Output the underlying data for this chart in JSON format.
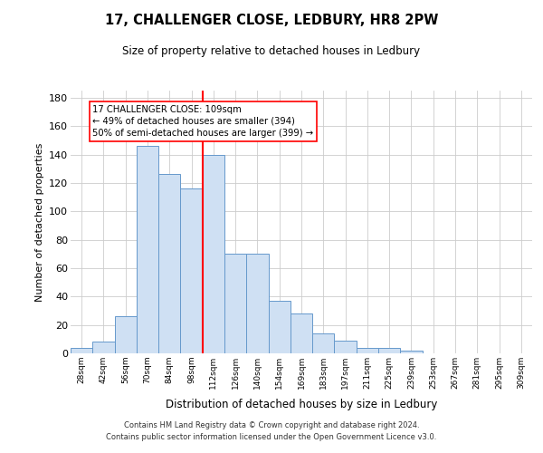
{
  "title": "17, CHALLENGER CLOSE, LEDBURY, HR8 2PW",
  "subtitle": "Size of property relative to detached houses in Ledbury",
  "xlabel": "Distribution of detached houses by size in Ledbury",
  "ylabel": "Number of detached properties",
  "bar_color": "#cfe0f3",
  "bar_edge_color": "#6699cc",
  "categories": [
    "28sqm",
    "42sqm",
    "56sqm",
    "70sqm",
    "84sqm",
    "98sqm",
    "112sqm",
    "126sqm",
    "140sqm",
    "154sqm",
    "169sqm",
    "183sqm",
    "197sqm",
    "211sqm",
    "225sqm",
    "239sqm",
    "253sqm",
    "267sqm",
    "281sqm",
    "295sqm",
    "309sqm"
  ],
  "values": [
    4,
    8,
    26,
    146,
    126,
    116,
    140,
    70,
    70,
    37,
    28,
    14,
    9,
    4,
    4,
    2,
    0,
    0,
    0,
    0,
    0
  ],
  "vline_x": 5.5,
  "annotation_line1": "17 CHALLENGER CLOSE: 109sqm",
  "annotation_line2": "← 49% of detached houses are smaller (394)",
  "annotation_line3": "50% of semi-detached houses are larger (399) →",
  "footnote1": "Contains HM Land Registry data © Crown copyright and database right 2024.",
  "footnote2": "Contains public sector information licensed under the Open Government Licence v3.0.",
  "ylim": [
    0,
    185
  ],
  "yticks": [
    0,
    20,
    40,
    60,
    80,
    100,
    120,
    140,
    160,
    180
  ],
  "background_color": "#ffffff",
  "grid_color": "#cccccc"
}
